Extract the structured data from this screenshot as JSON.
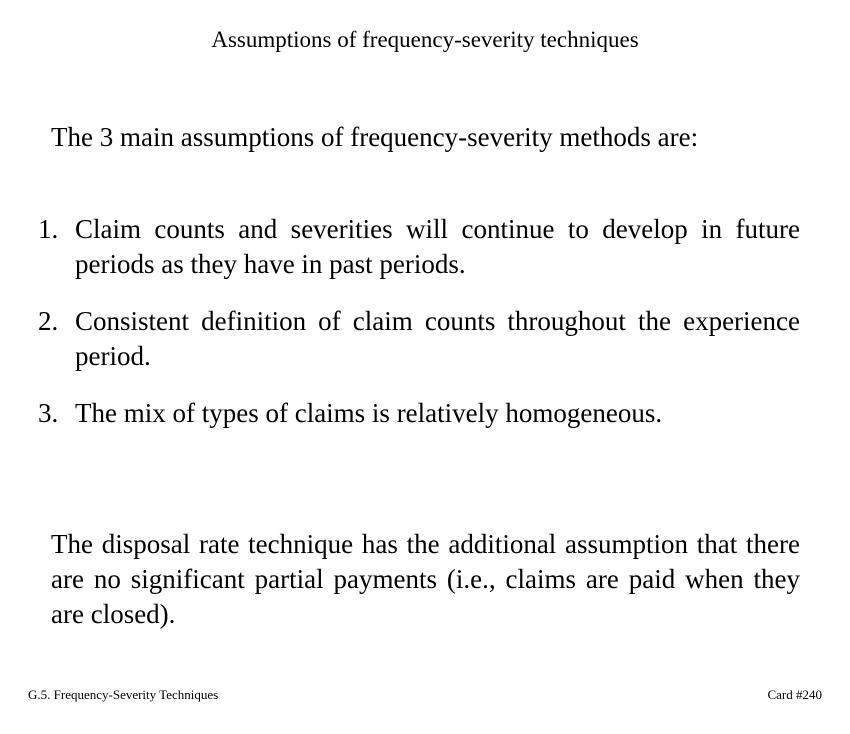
{
  "card": {
    "title": "Assumptions of frequency-severity techniques",
    "intro": "The 3 main assumptions of frequency-severity methods are:",
    "assumptions": [
      {
        "number": "1.",
        "text": "Claim counts and severities will continue to develop in future periods as they have in past periods."
      },
      {
        "number": "2.",
        "text": "Consistent definition of claim counts throughout the experience period."
      },
      {
        "number": "3.",
        "text": "The mix of types of claims is relatively homogeneous."
      }
    ],
    "closing": "The disposal rate technique has the additional assumption that there are no significant partial payments (i.e., claims are paid when they are closed).",
    "footer": {
      "section": "G.5. Frequency-Severity Techniques",
      "card_number": "Card #240"
    }
  }
}
